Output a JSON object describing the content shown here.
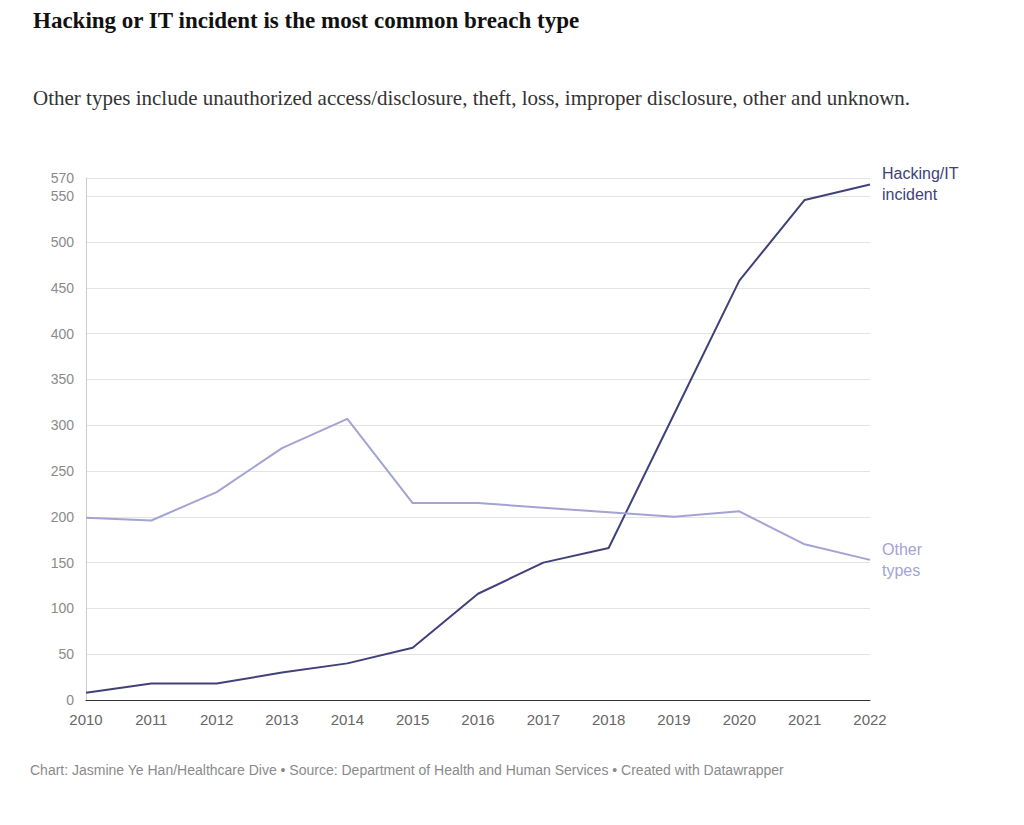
{
  "chart_data": {
    "type": "line",
    "title": "Hacking or IT incident is the most common breach type",
    "subtitle": "Other types include unauthorized access/disclosure, theft, loss, improper disclosure, other and unknown.",
    "caption": "Chart: Jasmine Ye Han/Healthcare Dive • Source: Department of Health and Human Services • Created with Datawrapper",
    "categories": [
      "2010",
      "2011",
      "2012",
      "2013",
      "2014",
      "2015",
      "2016",
      "2017",
      "2018",
      "2019",
      "2020",
      "2021",
      "2022"
    ],
    "series": [
      {
        "name": "Hacking/IT incident",
        "color": "#41417a",
        "values": [
          8,
          18,
          18,
          30,
          40,
          57,
          116,
          150,
          166,
          312,
          458,
          546,
          563
        ]
      },
      {
        "name": "Other types",
        "color": "#a3a3d4",
        "values": [
          199,
          196,
          227,
          275,
          307,
          215,
          215,
          210,
          205,
          200,
          206,
          170,
          153
        ]
      }
    ],
    "ylim": [
      0,
      570
    ],
    "yticks": [
      0,
      50,
      100,
      150,
      200,
      250,
      300,
      350,
      400,
      450,
      500,
      550
    ],
    "grid": true
  }
}
